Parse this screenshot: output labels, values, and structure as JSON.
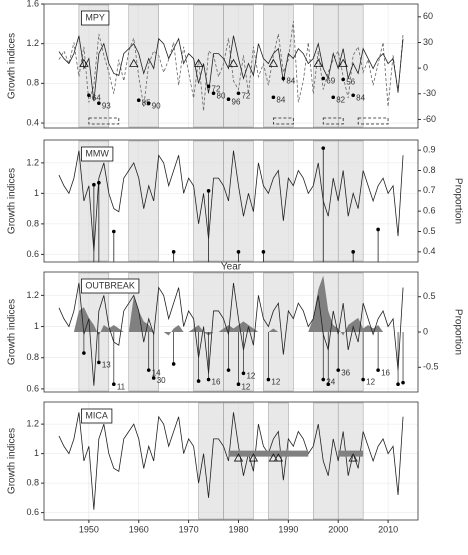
{
  "chart_data": [
    {
      "type": "line",
      "label": "MPY",
      "ylabel": "Growth indices",
      "x": [
        1944,
        1945,
        1946,
        1947,
        1948,
        1949,
        1950,
        1951,
        1952,
        1953,
        1954,
        1955,
        1956,
        1957,
        1958,
        1959,
        1960,
        1961,
        1962,
        1963,
        1964,
        1965,
        1966,
        1967,
        1968,
        1969,
        1970,
        1971,
        1972,
        1973,
        1974,
        1975,
        1976,
        1977,
        1978,
        1979,
        1980,
        1981,
        1982,
        1983,
        1984,
        1985,
        1986,
        1987,
        1988,
        1989,
        1990,
        1991,
        1992,
        1993,
        1994,
        1995,
        1996,
        1997,
        1998,
        1999,
        2000,
        2001,
        2002,
        2003,
        2004,
        2005,
        2006,
        2007,
        2008,
        2009,
        2010,
        2011,
        2012,
        2013
      ],
      "values": [
        1.12,
        1.05,
        1.0,
        1.1,
        1.28,
        0.95,
        1.05,
        0.62,
        1.1,
        1.2,
        1.0,
        0.9,
        0.88,
        1.1,
        1.15,
        1.2,
        1.1,
        0.9,
        1.05,
        0.95,
        1.25,
        1.2,
        1.05,
        1.15,
        1.25,
        1.0,
        1.1,
        1.05,
        0.8,
        1.0,
        0.7,
        1.1,
        1.1,
        1.05,
        0.95,
        1.28,
        1.05,
        0.85,
        1.0,
        0.88,
        1.2,
        1.05,
        1.0,
        1.1,
        1.15,
        0.82,
        1.1,
        1.05,
        1.15,
        1.1,
        1.0,
        1.05,
        1.2,
        0.95,
        0.85,
        1.1,
        0.95,
        1.15,
        0.85,
        1.0,
        0.9,
        1.15,
        1.05,
        0.95,
        1.05,
        1.1,
        1.0,
        1.05,
        0.72,
        1.25
      ],
      "color": "#222222",
      "series": [
        {
          "axis": "y2",
          "style": "dashed",
          "color": "#666666",
          "values": [
            10,
            20,
            5,
            30,
            -10,
            25,
            -40,
            -20,
            40,
            15,
            -5,
            -30,
            10,
            -15,
            20,
            35,
            -10,
            -45,
            5,
            20,
            15,
            -5,
            10,
            30,
            -20,
            25,
            -5,
            -35,
            10,
            -50,
            20,
            15,
            -10,
            5,
            35,
            -15,
            -25,
            15,
            -30,
            25,
            -10,
            5,
            -20,
            15,
            40,
            -5,
            10,
            55,
            -40,
            -15,
            30,
            -30,
            20,
            -25,
            -5,
            10,
            20,
            -10,
            -35,
            15,
            25,
            -5,
            10,
            -20,
            5,
            30,
            -45,
            15,
            -30,
            40
          ]
        }
      ],
      "shaded": [
        [
          1948,
          1954
        ],
        [
          1958,
          1964
        ],
        [
          1971,
          1977
        ],
        [
          1977,
          1983
        ],
        [
          1985,
          1991
        ],
        [
          1995,
          2000
        ],
        [
          2000,
          2005
        ]
      ],
      "triangles": [
        {
          "x": 1949,
          "y": 1.0
        },
        {
          "x": 1959,
          "y": 1.0
        },
        {
          "x": 1972,
          "y": 1.0
        },
        {
          "x": 1979,
          "y": 1.0
        },
        {
          "x": 1987,
          "y": 1.0
        },
        {
          "x": 1996,
          "y": 1.0
        },
        {
          "x": 2001,
          "y": 1.0
        }
      ],
      "markers": [
        {
          "x": 1950,
          "y": 0.68,
          "label": "64"
        },
        {
          "x": 1952,
          "y": 0.6,
          "label": "93"
        },
        {
          "x": 1960,
          "y": 0.63,
          "label": "85"
        },
        {
          "x": 1962,
          "y": 0.6,
          "label": "90"
        },
        {
          "x": 1974,
          "y": 0.77,
          "label": "72"
        },
        {
          "x": 1975,
          "y": 0.7,
          "label": "80"
        },
        {
          "x": 1978,
          "y": 0.64,
          "label": "96"
        },
        {
          "x": 1980,
          "y": 0.7,
          "label": "72"
        },
        {
          "x": 1987,
          "y": 0.66,
          "label": "84"
        },
        {
          "x": 1989,
          "y": 0.85,
          "label": "84"
        },
        {
          "x": 1997,
          "y": 0.85,
          "label": "69"
        },
        {
          "x": 1999,
          "y": 0.66,
          "label": "82"
        },
        {
          "x": 2001,
          "y": 0.84,
          "label": "56"
        },
        {
          "x": 2003,
          "y": 0.68,
          "label": "84"
        }
      ],
      "dashed_boxes": [
        [
          1950,
          1956
        ],
        [
          1987,
          1991
        ],
        [
          1997,
          2001
        ],
        [
          2004,
          2010
        ]
      ],
      "xlim": [
        1941,
        2016
      ],
      "xticks": [
        1950,
        1960,
        1970,
        1980,
        1990,
        2000,
        2010
      ],
      "ylim": [
        0.35,
        1.6
      ],
      "yticks": [
        0.4,
        0.8,
        1.2,
        1.6
      ],
      "y2lim": [
        -70,
        75
      ],
      "y2ticks": [
        -60,
        -30,
        0,
        30,
        60
      ]
    },
    {
      "type": "line",
      "label": "MMW",
      "ylabel": "Growth indices",
      "y2label": "Proportion",
      "xlabel": "Year",
      "x": [
        1944,
        1945,
        1946,
        1947,
        1948,
        1949,
        1950,
        1951,
        1952,
        1953,
        1954,
        1955,
        1956,
        1957,
        1958,
        1959,
        1960,
        1961,
        1962,
        1963,
        1964,
        1965,
        1966,
        1967,
        1968,
        1969,
        1970,
        1971,
        1972,
        1973,
        1974,
        1975,
        1976,
        1977,
        1978,
        1979,
        1980,
        1981,
        1982,
        1983,
        1984,
        1985,
        1986,
        1987,
        1988,
        1989,
        1990,
        1991,
        1992,
        1993,
        1994,
        1995,
        1996,
        1997,
        1998,
        1999,
        2000,
        2001,
        2002,
        2003,
        2004,
        2005,
        2006,
        2007,
        2008,
        2009,
        2010,
        2011,
        2012,
        2013
      ],
      "values": [
        1.12,
        1.05,
        1.0,
        1.1,
        1.28,
        0.95,
        1.05,
        0.62,
        1.1,
        1.2,
        1.0,
        0.9,
        0.88,
        1.1,
        1.15,
        1.2,
        1.1,
        0.9,
        1.05,
        0.95,
        1.25,
        1.2,
        1.05,
        1.15,
        1.25,
        1.0,
        1.1,
        1.05,
        0.8,
        1.0,
        0.7,
        1.1,
        1.1,
        1.05,
        0.95,
        1.28,
        1.05,
        0.85,
        1.0,
        0.88,
        1.2,
        1.05,
        1.0,
        1.1,
        1.15,
        0.82,
        1.1,
        1.05,
        1.15,
        1.1,
        1.0,
        1.05,
        1.2,
        0.95,
        0.85,
        1.1,
        0.95,
        1.15,
        0.85,
        1.0,
        0.9,
        1.15,
        1.05,
        0.95,
        1.05,
        1.1,
        1.0,
        1.05,
        0.72,
        1.25
      ],
      "color": "#222222",
      "shaded": [
        [
          1948,
          1954
        ],
        [
          1958,
          1964
        ],
        [
          1971,
          1977
        ],
        [
          1977,
          1983
        ],
        [
          1985,
          1991
        ],
        [
          1995,
          2000
        ],
        [
          2000,
          2005
        ]
      ],
      "stems": [
        {
          "x": 1951,
          "y": 0.73
        },
        {
          "x": 1952,
          "y": 0.74
        },
        {
          "x": 1955,
          "y": 0.5
        },
        {
          "x": 1967,
          "y": 0.4
        },
        {
          "x": 1974,
          "y": 0.7
        },
        {
          "x": 1980,
          "y": 0.4
        },
        {
          "x": 1985,
          "y": 0.4
        },
        {
          "x": 1997,
          "y": 0.91
        },
        {
          "x": 2003,
          "y": 0.4
        },
        {
          "x": 2008,
          "y": 0.51
        }
      ],
      "xlim": [
        1941,
        2016
      ],
      "xticks": [
        1950,
        1960,
        1970,
        1980,
        1990,
        2000,
        2010
      ],
      "ylim": [
        0.55,
        1.35
      ],
      "yticks": [
        0.6,
        0.8,
        1.0,
        1.2
      ],
      "y2lim": [
        0.35,
        0.95
      ],
      "y2ticks": [
        0.4,
        0.5,
        0.6,
        0.7,
        0.8,
        0.9
      ]
    },
    {
      "type": "line",
      "label": "OUTBREAK",
      "ylabel": "Growth indices",
      "y2label": "Proportion",
      "x": [
        1944,
        1945,
        1946,
        1947,
        1948,
        1949,
        1950,
        1951,
        1952,
        1953,
        1954,
        1955,
        1956,
        1957,
        1958,
        1959,
        1960,
        1961,
        1962,
        1963,
        1964,
        1965,
        1966,
        1967,
        1968,
        1969,
        1970,
        1971,
        1972,
        1973,
        1974,
        1975,
        1976,
        1977,
        1978,
        1979,
        1980,
        1981,
        1982,
        1983,
        1984,
        1985,
        1986,
        1987,
        1988,
        1989,
        1990,
        1991,
        1992,
        1993,
        1994,
        1995,
        1996,
        1997,
        1998,
        1999,
        2000,
        2001,
        2002,
        2003,
        2004,
        2005,
        2006,
        2007,
        2008,
        2009,
        2010,
        2011,
        2012,
        2013
      ],
      "values": [
        1.12,
        1.05,
        1.0,
        1.1,
        1.28,
        0.95,
        1.05,
        0.62,
        1.1,
        1.2,
        1.0,
        0.9,
        0.88,
        1.1,
        1.15,
        1.2,
        1.1,
        0.9,
        1.05,
        0.95,
        1.25,
        1.2,
        1.05,
        1.15,
        1.25,
        1.0,
        1.1,
        1.05,
        0.8,
        1.0,
        0.7,
        1.1,
        1.1,
        1.05,
        0.95,
        1.28,
        1.05,
        0.85,
        1.0,
        0.88,
        1.2,
        1.05,
        1.0,
        1.1,
        1.15,
        0.82,
        1.1,
        1.05,
        1.15,
        1.1,
        1.0,
        1.05,
        1.2,
        0.95,
        0.85,
        1.1,
        0.95,
        1.15,
        0.85,
        1.0,
        0.9,
        1.15,
        1.05,
        0.95,
        1.05,
        1.1,
        1.0,
        1.05,
        0.72,
        1.25
      ],
      "color": "#222222",
      "area": {
        "axis": "y2",
        "color": "#808080",
        "values": [
          0,
          0,
          0,
          0,
          0.3,
          0.35,
          0.2,
          0.1,
          -0.05,
          0.1,
          0.05,
          0.1,
          0.05,
          0,
          0,
          0.5,
          0.3,
          0.15,
          0.1,
          0,
          0,
          0,
          -0.05,
          0.05,
          0.1,
          0,
          0,
          0.05,
          0.1,
          0,
          -0.05,
          0,
          0,
          0.05,
          0.1,
          0.05,
          0.1,
          0.15,
          0.1,
          0.05,
          0,
          0,
          0,
          0.05,
          0,
          0,
          0,
          0,
          0,
          0,
          0,
          0.2,
          0.6,
          0.8,
          0.3,
          0.1,
          0.05,
          -0.05,
          0.1,
          0.15,
          0.2,
          0.05,
          0.1,
          0.05,
          0.1,
          0,
          0,
          0,
          0,
          0
        ]
      },
      "shaded": [
        [
          1948,
          1954
        ],
        [
          1958,
          1964
        ],
        [
          1971,
          1977
        ],
        [
          1977,
          1983
        ],
        [
          1985,
          1991
        ],
        [
          1995,
          2000
        ],
        [
          2000,
          2005
        ]
      ],
      "markers": [
        {
          "x": 1949,
          "y": 0.83
        },
        {
          "x": 1952,
          "y": 0.77,
          "label": "13"
        },
        {
          "x": 1955,
          "y": 0.63,
          "label": "11"
        },
        {
          "x": 1962,
          "y": 0.72,
          "label": "14"
        },
        {
          "x": 1963,
          "y": 0.67,
          "label": "30"
        },
        {
          "x": 1967,
          "y": 0.76
        },
        {
          "x": 1972,
          "y": 0.65
        },
        {
          "x": 1974,
          "y": 0.66,
          "label": "16"
        },
        {
          "x": 1978,
          "y": 0.72
        },
        {
          "x": 1980,
          "y": 0.63,
          "label": "12"
        },
        {
          "x": 1981,
          "y": 0.7,
          "label": "12"
        },
        {
          "x": 1986,
          "y": 0.66,
          "label": "12"
        },
        {
          "x": 1997,
          "y": 0.66,
          "label": "24"
        },
        {
          "x": 1998,
          "y": 0.63
        },
        {
          "x": 2000,
          "y": 0.72,
          "label": "36"
        },
        {
          "x": 2005,
          "y": 0.66,
          "label": "12"
        },
        {
          "x": 2008,
          "y": 0.72,
          "label": "16"
        },
        {
          "x": 2012,
          "y": 0.63
        },
        {
          "x": 2013,
          "y": 0.64
        }
      ],
      "xlim": [
        1941,
        2016
      ],
      "xticks": [
        1950,
        1960,
        1970,
        1980,
        1990,
        2000,
        2010
      ],
      "ylim": [
        0.58,
        1.35
      ],
      "yticks": [
        0.6,
        0.8,
        1.0,
        1.2
      ],
      "y2lim": [
        -0.85,
        0.85
      ],
      "y2ticks": [
        -0.5,
        0,
        0.5
      ]
    },
    {
      "type": "line",
      "label": "MICA",
      "ylabel": "Growth indices",
      "x": [
        1944,
        1945,
        1946,
        1947,
        1948,
        1949,
        1950,
        1951,
        1952,
        1953,
        1954,
        1955,
        1956,
        1957,
        1958,
        1959,
        1960,
        1961,
        1962,
        1963,
        1964,
        1965,
        1966,
        1967,
        1968,
        1969,
        1970,
        1971,
        1972,
        1973,
        1974,
        1975,
        1976,
        1977,
        1978,
        1979,
        1980,
        1981,
        1982,
        1983,
        1984,
        1985,
        1986,
        1987,
        1988,
        1989,
        1990,
        1991,
        1992,
        1993,
        1994,
        1995,
        1996,
        1997,
        1998,
        1999,
        2000,
        2001,
        2002,
        2003,
        2004,
        2005,
        2006,
        2007,
        2008,
        2009,
        2010,
        2011,
        2012,
        2013
      ],
      "values": [
        1.12,
        1.05,
        1.0,
        1.1,
        1.28,
        0.95,
        1.05,
        0.62,
        1.1,
        1.2,
        1.0,
        0.9,
        0.88,
        1.1,
        1.15,
        1.2,
        1.1,
        0.9,
        1.05,
        0.95,
        1.25,
        1.2,
        1.05,
        1.15,
        1.25,
        1.0,
        1.1,
        1.05,
        0.8,
        1.0,
        0.7,
        1.1,
        1.1,
        1.05,
        0.95,
        1.28,
        1.05,
        0.85,
        1.0,
        0.88,
        1.2,
        1.05,
        1.0,
        1.1,
        1.15,
        0.82,
        1.1,
        1.05,
        1.15,
        1.1,
        1.0,
        1.05,
        1.2,
        0.95,
        0.85,
        1.1,
        0.95,
        1.15,
        0.85,
        1.0,
        0.9,
        1.15,
        1.05,
        0.95,
        1.05,
        1.1,
        1.0,
        1.05,
        0.72,
        1.25
      ],
      "color": "#222222",
      "shaded": [
        [
          1972,
          1977
        ],
        [
          1977,
          1983
        ],
        [
          1986,
          1990
        ],
        [
          1995,
          2000
        ],
        [
          2000,
          2005
        ]
      ],
      "bands": [
        {
          "from": 1978,
          "to": 1994,
          "y": 1.0
        },
        {
          "from": 2000,
          "to": 2005,
          "y": 1.0
        }
      ],
      "triangles": [
        {
          "x": 1980,
          "y": 0.97
        },
        {
          "x": 1983,
          "y": 0.97
        },
        {
          "x": 1987,
          "y": 0.97
        },
        {
          "x": 1988,
          "y": 0.97
        },
        {
          "x": 2003,
          "y": 0.97
        }
      ],
      "xlim": [
        1941,
        2016
      ],
      "xticks": [
        1950,
        1960,
        1970,
        1980,
        1990,
        2000,
        2010
      ],
      "ylim": [
        0.55,
        1.35
      ],
      "yticks": [
        0.6,
        0.8,
        1.0,
        1.2
      ]
    }
  ]
}
